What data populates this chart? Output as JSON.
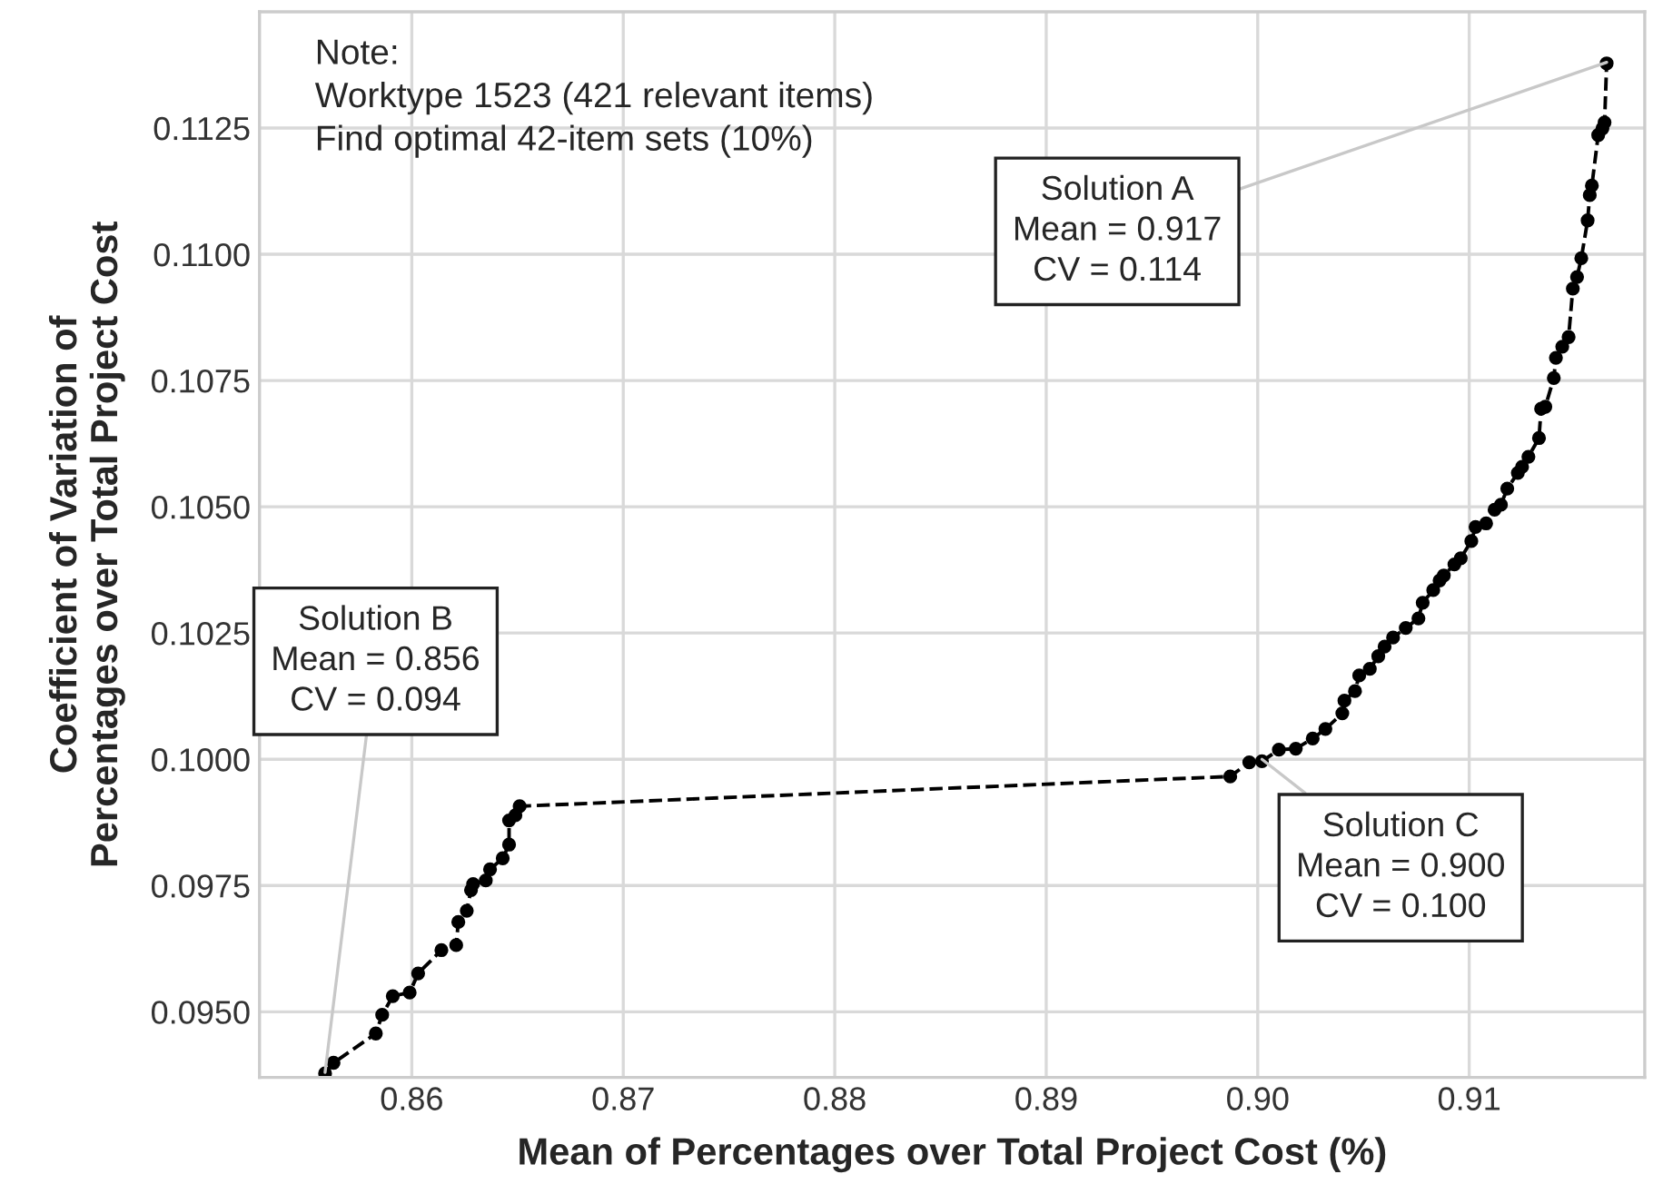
{
  "chart_data": {
    "type": "line",
    "xlabel": "Mean of Percentages over Total Project Cost (%)",
    "ylabel": "Coefficient of Variation of\nPercentages over Total Project Cost",
    "xlim": [
      0.8528,
      0.9183
    ],
    "ylim": [
      0.0937,
      0.1148
    ],
    "xticks": [
      {
        "value": 0.86,
        "label": "0.86"
      },
      {
        "value": 0.87,
        "label": "0.87"
      },
      {
        "value": 0.88,
        "label": "0.88"
      },
      {
        "value": 0.89,
        "label": "0.89"
      },
      {
        "value": 0.9,
        "label": "0.90"
      },
      {
        "value": 0.91,
        "label": "0.91"
      }
    ],
    "yticks": [
      {
        "value": 0.095,
        "label": "0.0950"
      },
      {
        "value": 0.0975,
        "label": "0.0975"
      },
      {
        "value": 0.1,
        "label": "0.1000"
      },
      {
        "value": 0.1025,
        "label": "0.1025"
      },
      {
        "value": 0.105,
        "label": "0.1050"
      },
      {
        "value": 0.1075,
        "label": "0.1075"
      },
      {
        "value": 0.11,
        "label": "0.1100"
      },
      {
        "value": 0.1125,
        "label": "0.1125"
      }
    ],
    "grid": true,
    "marker": "circle",
    "line_style": "dashed",
    "series": [
      {
        "color": "#000000",
        "x": [
          0.8559,
          0.8563,
          0.8583,
          0.8586,
          0.8591,
          0.8599,
          0.8603,
          0.8614,
          0.8621,
          0.8622,
          0.8626,
          0.8628,
          0.8629,
          0.8635,
          0.8637,
          0.8643,
          0.8646,
          0.8646,
          0.8649,
          0.8651,
          0.8987,
          0.8996,
          0.9002,
          0.901,
          0.9018,
          0.9026,
          0.9032,
          0.904,
          0.9041,
          0.9046,
          0.9048,
          0.9053,
          0.9057,
          0.906,
          0.9064,
          0.907,
          0.9076,
          0.9078,
          0.9083,
          0.9086,
          0.9088,
          0.9093,
          0.9096,
          0.9101,
          0.9103,
          0.9108,
          0.9112,
          0.9115,
          0.9118,
          0.9123,
          0.9125,
          0.9128,
          0.9133,
          0.9134,
          0.9136,
          0.914,
          0.9141,
          0.9144,
          0.9147,
          0.9149,
          0.9151,
          0.9153,
          0.9156,
          0.9157,
          0.9158,
          0.9161,
          0.9163,
          0.9164,
          0.9165
        ],
        "values": [
          0.09378,
          0.09399,
          0.09457,
          0.09494,
          0.09531,
          0.09538,
          0.09576,
          0.09622,
          0.09632,
          0.09678,
          0.097,
          0.09741,
          0.09753,
          0.0976,
          0.09782,
          0.09804,
          0.09831,
          0.09879,
          0.09889,
          0.09907,
          0.09966,
          0.09994,
          0.09996,
          0.10019,
          0.10021,
          0.10041,
          0.1006,
          0.10091,
          0.10116,
          0.10135,
          0.10166,
          0.10179,
          0.10204,
          0.10223,
          0.10241,
          0.1026,
          0.10279,
          0.1031,
          0.10335,
          0.10354,
          0.10364,
          0.10386,
          0.10398,
          0.10432,
          0.1046,
          0.10467,
          0.10494,
          0.10504,
          0.10536,
          0.10567,
          0.10579,
          0.10599,
          0.10636,
          0.10694,
          0.10698,
          0.10755,
          0.10795,
          0.10817,
          0.10836,
          0.10932,
          0.10955,
          0.10992,
          0.11067,
          0.11117,
          0.11136,
          0.11236,
          0.11249,
          0.11261,
          0.11378
        ]
      }
    ],
    "annotations": [
      "Note:\nWorktype 1523 (421 relevant items)\nFind optimal 42-item sets (10%)",
      {
        "text": "Solution A\nMean = 0.917\nCV = 0.114",
        "x": 0.9165,
        "y": 0.1138
      },
      {
        "text": "Solution B\nMean = 0.856\nCV = 0.094",
        "x": 0.8559,
        "y": 0.0938
      },
      {
        "text": "Solution C\nMean = 0.900\nCV = 0.100",
        "x": 0.9002,
        "y": 0.1
      }
    ]
  }
}
